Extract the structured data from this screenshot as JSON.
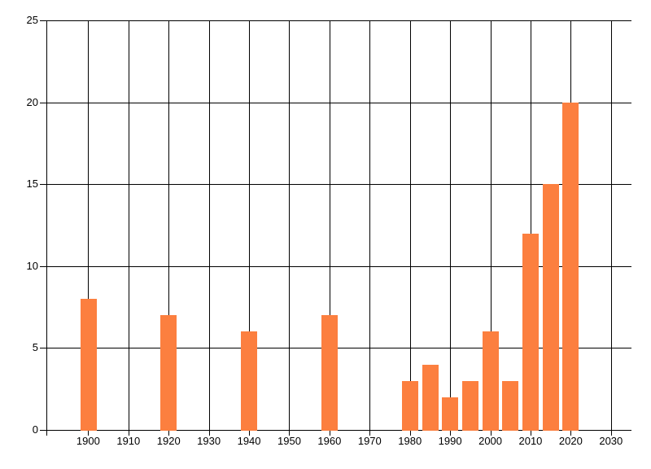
{
  "chart_data": {
    "type": "bar",
    "title": "",
    "xlabel": "",
    "ylabel": "",
    "x": [
      1900,
      1920,
      1940,
      1960,
      1980,
      1985,
      1990,
      1995,
      2000,
      2005,
      2010,
      2015,
      2020
    ],
    "values": [
      8,
      7,
      6,
      7,
      3,
      4,
      2,
      3,
      6,
      3,
      12,
      15,
      20
    ],
    "xlim": [
      1889.6,
      2035.1
    ],
    "ylim": [
      0,
      25
    ],
    "x_ticks": [
      1900,
      1910,
      1920,
      1930,
      1940,
      1950,
      1960,
      1970,
      1980,
      1990,
      2000,
      2010,
      2020,
      2030
    ],
    "x_tick_labels": [
      "1900",
      "1910",
      "1920",
      "1930",
      "1940",
      "1950",
      "1960",
      "1970",
      "1980",
      "1990",
      "2000",
      "2010",
      "2020",
      "2030"
    ],
    "y_ticks": [
      0,
      5,
      10,
      15,
      20,
      25
    ],
    "y_tick_labels": [
      "0",
      "5",
      "10",
      "15",
      "20",
      "25"
    ],
    "bar_width_years": 4,
    "grid": true,
    "legend": false,
    "colors": {
      "bar": "#fc7f3f",
      "grid": "#000000",
      "text": "#000000",
      "background": "#ffffff"
    }
  }
}
